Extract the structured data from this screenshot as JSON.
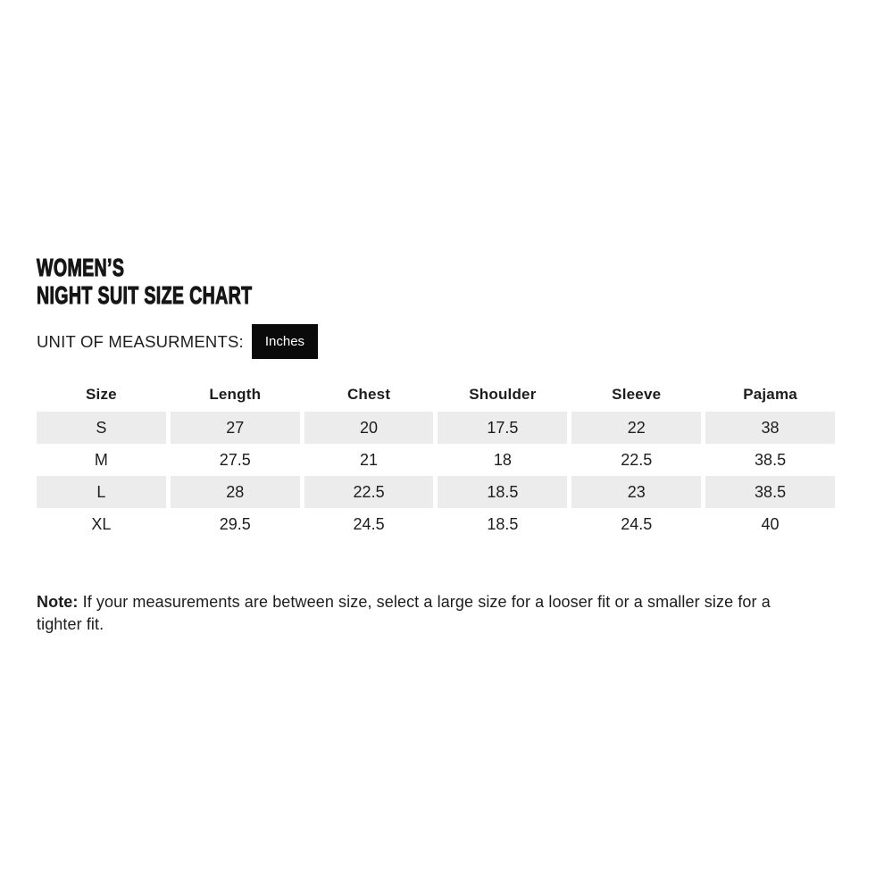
{
  "title": {
    "line1": "WOMEN’S",
    "line2": "NIGHT SUIT SIZE CHART"
  },
  "unit": {
    "label": "UNIT OF MEASURMENTS:",
    "value": "Inches"
  },
  "table": {
    "columns": [
      "Size",
      "Length",
      "Chest",
      "Shoulder",
      "Sleeve",
      "Pajama"
    ],
    "rows": [
      [
        "S",
        "27",
        "20",
        "17.5",
        "22",
        "38"
      ],
      [
        "M",
        "27.5",
        "21",
        "18",
        "22.5",
        "38.5"
      ],
      [
        "L",
        "28",
        "22.5",
        "18.5",
        "23",
        "38.5"
      ],
      [
        "XL",
        "29.5",
        "24.5",
        "18.5",
        "24.5",
        "40"
      ]
    ]
  },
  "note": {
    "label": "Note:",
    "text": "If your measurements are between size, select a large size for a looser fit or a smaller size for a tighter fit."
  },
  "colors": {
    "text": "#1d1d1d",
    "title": "#161616",
    "stripe": "#ececec",
    "badge_bg": "#0a0a0a",
    "badge_text": "#ffffff",
    "page_bg": "#ffffff"
  }
}
